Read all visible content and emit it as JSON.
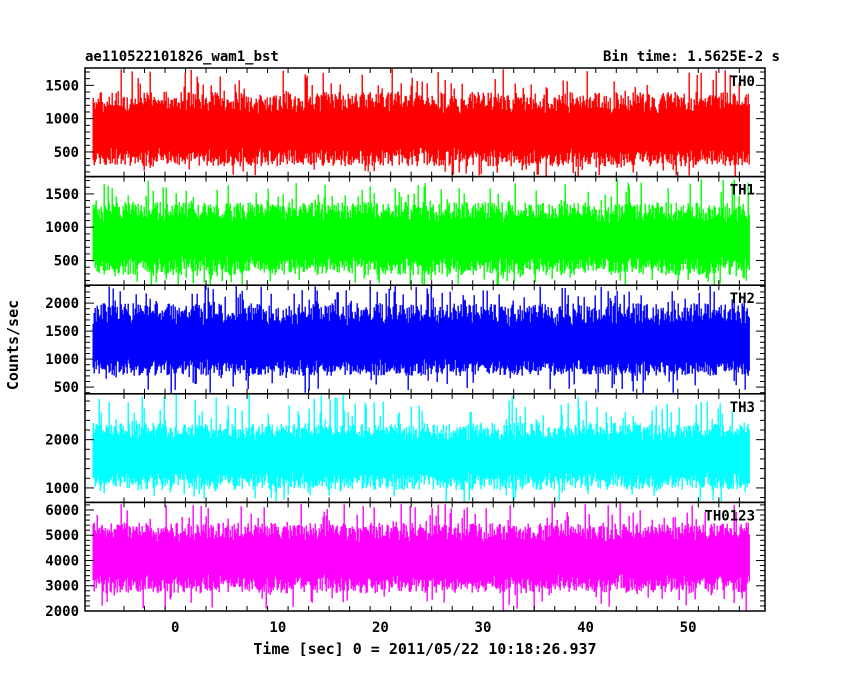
{
  "chart_data": {
    "type": "line",
    "title": "ae110522101826_wam1_bst",
    "subtitle": "Bin time: 1.5625E-2 s",
    "xlabel": "Time [sec] 0 = 2011/05/22 10:18:26.937",
    "ylabel": "Counts/sec",
    "xlim": [
      -8.8,
      57.5
    ],
    "x_range_data": [
      -8.0,
      56.0
    ],
    "xticks": [
      0,
      10,
      20,
      30,
      40,
      50
    ],
    "grid": false,
    "panels": [
      {
        "name": "TH0",
        "color": "#ff0000",
        "ylim": [
          130,
          1760
        ],
        "yticks": [
          500,
          1000,
          1500
        ],
        "typical_min": 280,
        "typical_max": 1400,
        "peak_max": 1760,
        "mean": 800
      },
      {
        "name": "TH1",
        "color": "#00ff00",
        "ylim": [
          130,
          1760
        ],
        "yticks": [
          500,
          1000,
          1500
        ],
        "typical_min": 280,
        "typical_max": 1380,
        "peak_max": 1720,
        "mean": 800
      },
      {
        "name": "TH2",
        "color": "#0000ff",
        "ylim": [
          380,
          2320
        ],
        "yticks": [
          500,
          1000,
          1500,
          2000
        ],
        "typical_min": 700,
        "typical_max": 2000,
        "peak_max": 2320,
        "mean": 1250
      },
      {
        "name": "TH3",
        "color": "#00ffff",
        "ylim": [
          700,
          2950
        ],
        "yticks": [
          1000,
          2000
        ],
        "typical_min": 950,
        "typical_max": 2350,
        "peak_max": 2950,
        "mean": 1650
      },
      {
        "name": "TH0123",
        "color": "#ff00ff",
        "ylim": [
          2000,
          6300
        ],
        "yticks": [
          2000,
          3000,
          4000,
          5000,
          6000
        ],
        "typical_min": 2700,
        "typical_max": 5500,
        "peak_max": 6300,
        "mean": 4100
      }
    ]
  }
}
